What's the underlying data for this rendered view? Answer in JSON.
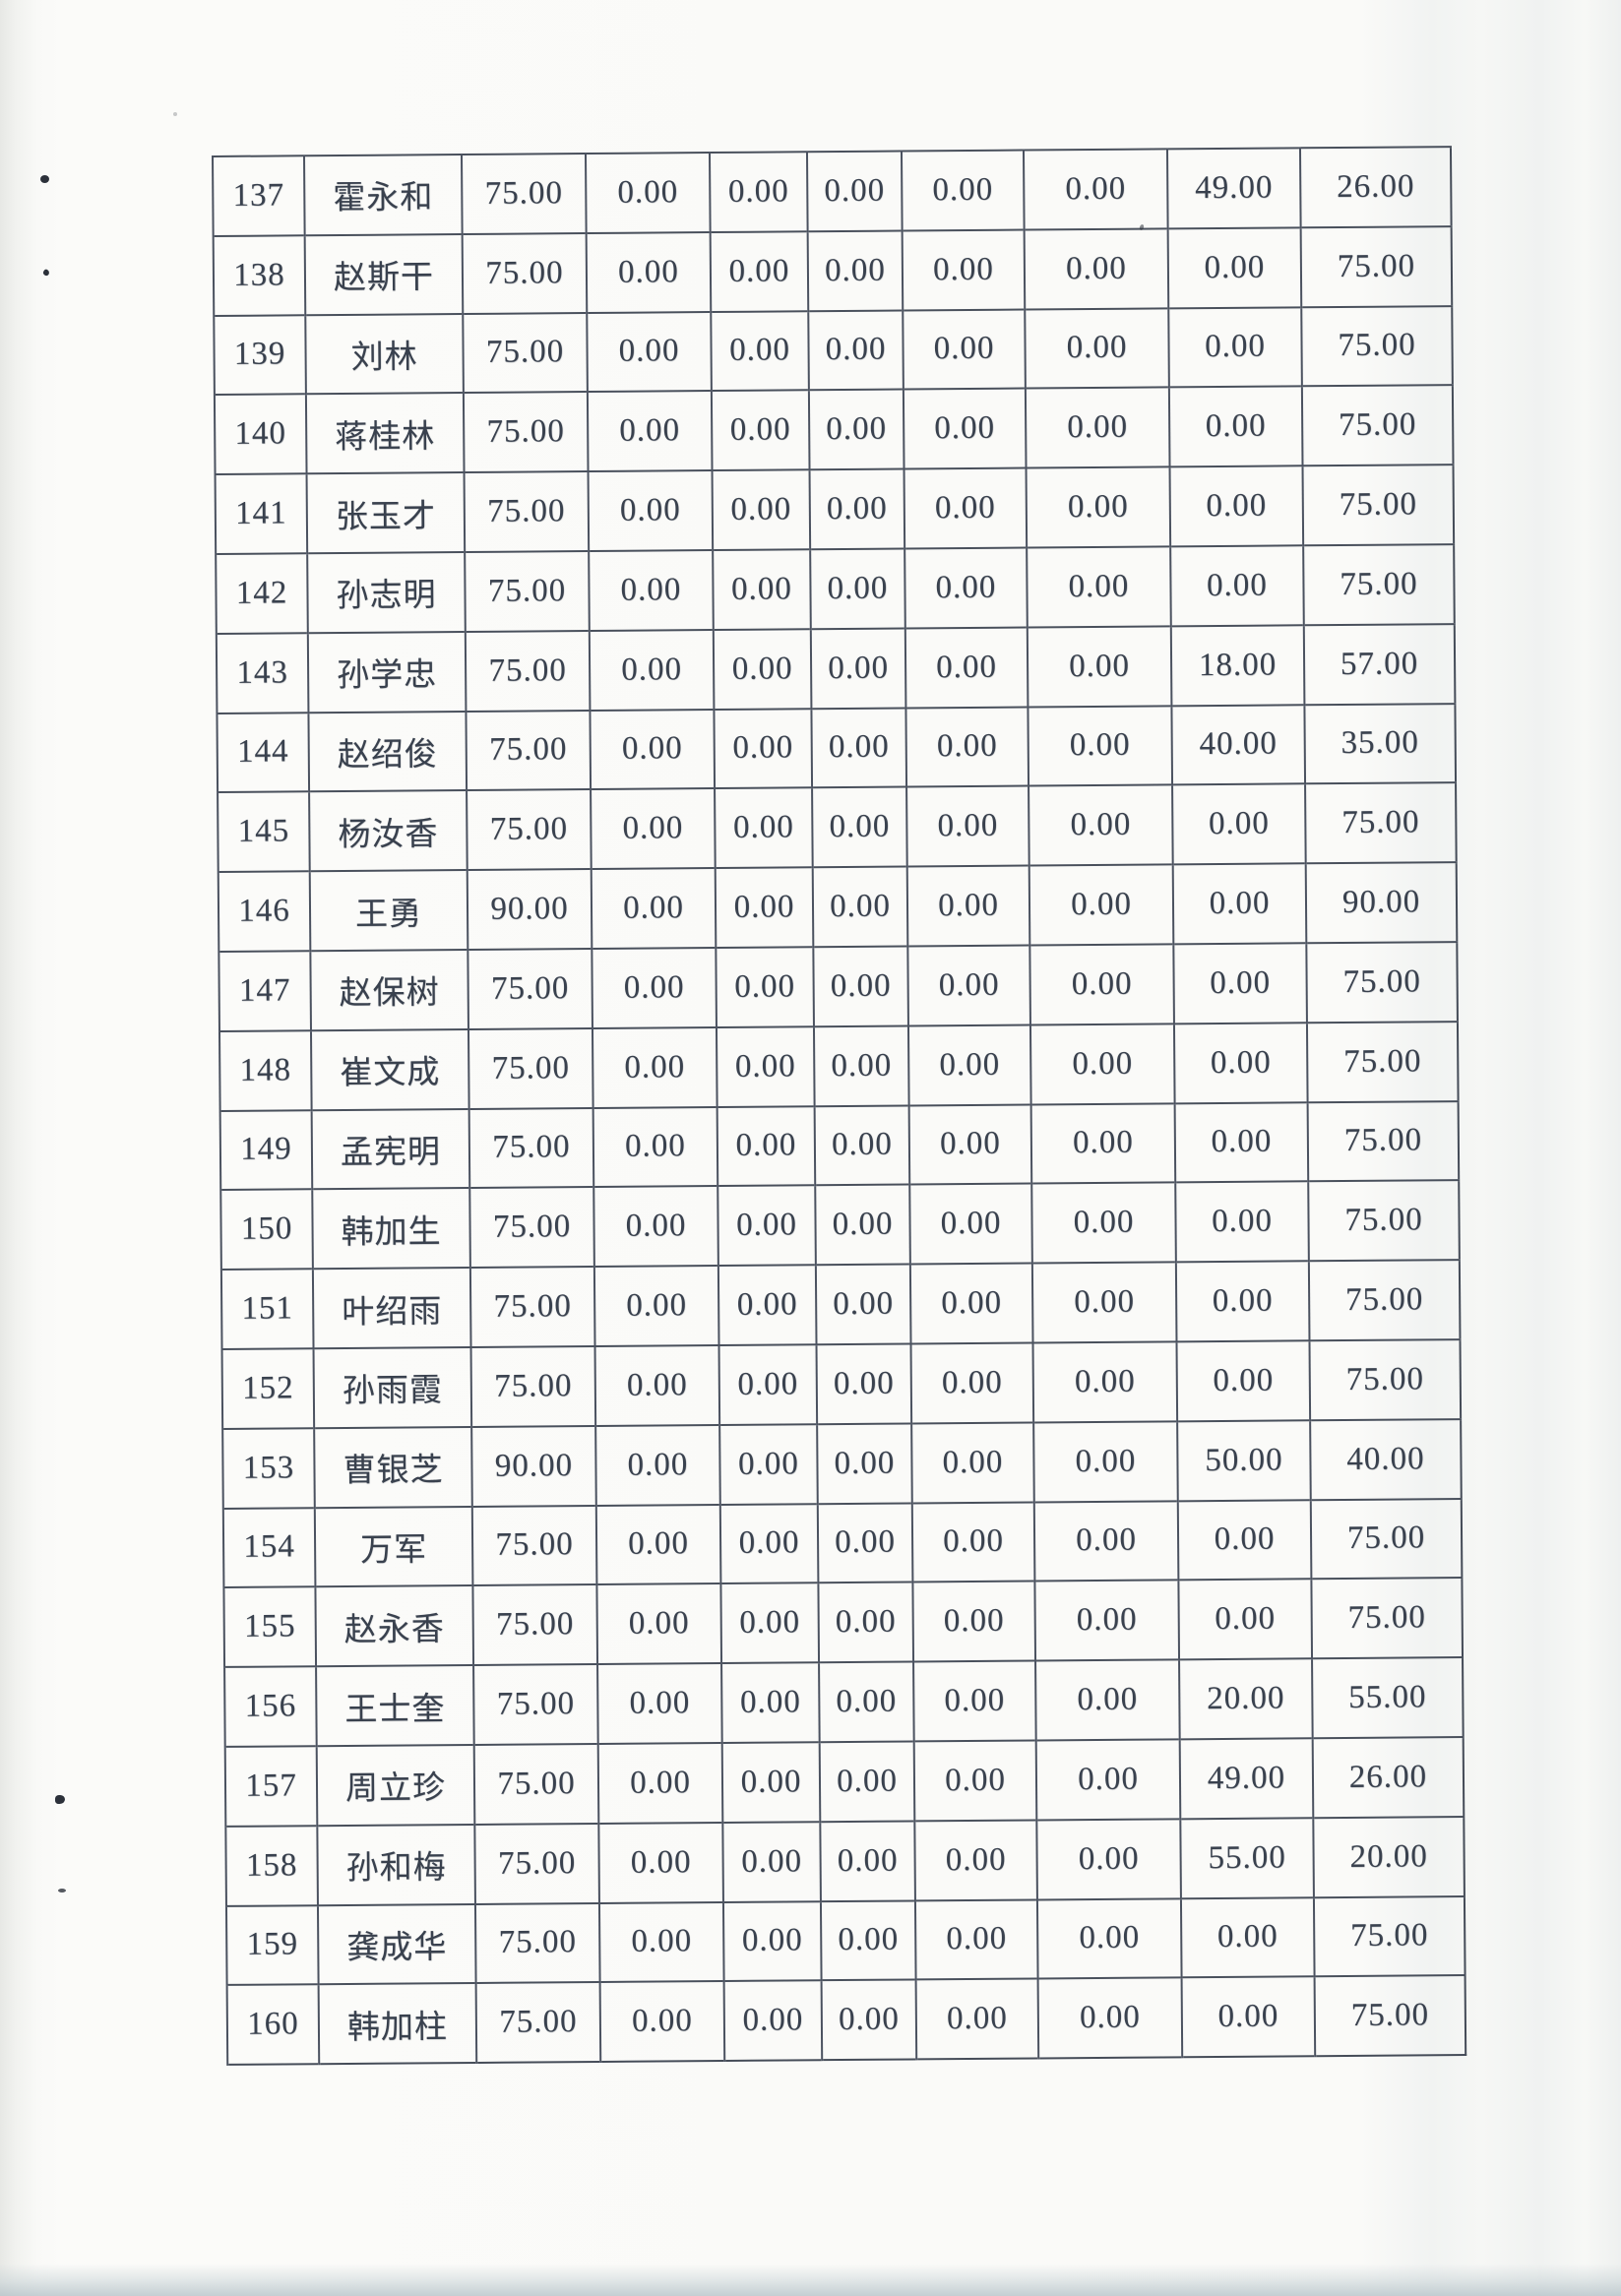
{
  "page": {
    "paper_color": "#fafaf8",
    "ink_color": "#39414e",
    "grid_line_color": "#49505c"
  },
  "table": {
    "rows": [
      {
        "no": "137",
        "name": "霍永和",
        "values": [
          "75.00",
          "0.00",
          "0.00",
          "0.00",
          "0.00",
          "0.00",
          "49.00",
          "26.00"
        ]
      },
      {
        "no": "138",
        "name": "赵斯干",
        "values": [
          "75.00",
          "0.00",
          "0.00",
          "0.00",
          "0.00",
          "0.00",
          "0.00",
          "75.00"
        ]
      },
      {
        "no": "139",
        "name": "刘林",
        "values": [
          "75.00",
          "0.00",
          "0.00",
          "0.00",
          "0.00",
          "0.00",
          "0.00",
          "75.00"
        ]
      },
      {
        "no": "140",
        "name": "蒋桂林",
        "values": [
          "75.00",
          "0.00",
          "0.00",
          "0.00",
          "0.00",
          "0.00",
          "0.00",
          "75.00"
        ]
      },
      {
        "no": "141",
        "name": "张玉才",
        "values": [
          "75.00",
          "0.00",
          "0.00",
          "0.00",
          "0.00",
          "0.00",
          "0.00",
          "75.00"
        ]
      },
      {
        "no": "142",
        "name": "孙志明",
        "values": [
          "75.00",
          "0.00",
          "0.00",
          "0.00",
          "0.00",
          "0.00",
          "0.00",
          "75.00"
        ]
      },
      {
        "no": "143",
        "name": "孙学忠",
        "values": [
          "75.00",
          "0.00",
          "0.00",
          "0.00",
          "0.00",
          "0.00",
          "18.00",
          "57.00"
        ]
      },
      {
        "no": "144",
        "name": "赵绍俊",
        "values": [
          "75.00",
          "0.00",
          "0.00",
          "0.00",
          "0.00",
          "0.00",
          "40.00",
          "35.00"
        ]
      },
      {
        "no": "145",
        "name": "杨汝香",
        "values": [
          "75.00",
          "0.00",
          "0.00",
          "0.00",
          "0.00",
          "0.00",
          "0.00",
          "75.00"
        ]
      },
      {
        "no": "146",
        "name": "王勇",
        "values": [
          "90.00",
          "0.00",
          "0.00",
          "0.00",
          "0.00",
          "0.00",
          "0.00",
          "90.00"
        ]
      },
      {
        "no": "147",
        "name": "赵保树",
        "values": [
          "75.00",
          "0.00",
          "0.00",
          "0.00",
          "0.00",
          "0.00",
          "0.00",
          "75.00"
        ]
      },
      {
        "no": "148",
        "name": "崔文成",
        "values": [
          "75.00",
          "0.00",
          "0.00",
          "0.00",
          "0.00",
          "0.00",
          "0.00",
          "75.00"
        ]
      },
      {
        "no": "149",
        "name": "孟宪明",
        "values": [
          "75.00",
          "0.00",
          "0.00",
          "0.00",
          "0.00",
          "0.00",
          "0.00",
          "75.00"
        ]
      },
      {
        "no": "150",
        "name": "韩加生",
        "values": [
          "75.00",
          "0.00",
          "0.00",
          "0.00",
          "0.00",
          "0.00",
          "0.00",
          "75.00"
        ]
      },
      {
        "no": "151",
        "name": "叶绍雨",
        "values": [
          "75.00",
          "0.00",
          "0.00",
          "0.00",
          "0.00",
          "0.00",
          "0.00",
          "75.00"
        ]
      },
      {
        "no": "152",
        "name": "孙雨霞",
        "values": [
          "75.00",
          "0.00",
          "0.00",
          "0.00",
          "0.00",
          "0.00",
          "0.00",
          "75.00"
        ]
      },
      {
        "no": "153",
        "name": "曹银芝",
        "values": [
          "90.00",
          "0.00",
          "0.00",
          "0.00",
          "0.00",
          "0.00",
          "50.00",
          "40.00"
        ]
      },
      {
        "no": "154",
        "name": "万军",
        "values": [
          "75.00",
          "0.00",
          "0.00",
          "0.00",
          "0.00",
          "0.00",
          "0.00",
          "75.00"
        ]
      },
      {
        "no": "155",
        "name": "赵永香",
        "values": [
          "75.00",
          "0.00",
          "0.00",
          "0.00",
          "0.00",
          "0.00",
          "0.00",
          "75.00"
        ]
      },
      {
        "no": "156",
        "name": "王士奎",
        "values": [
          "75.00",
          "0.00",
          "0.00",
          "0.00",
          "0.00",
          "0.00",
          "20.00",
          "55.00"
        ]
      },
      {
        "no": "157",
        "name": "周立珍",
        "values": [
          "75.00",
          "0.00",
          "0.00",
          "0.00",
          "0.00",
          "0.00",
          "49.00",
          "26.00"
        ]
      },
      {
        "no": "158",
        "name": "孙和梅",
        "values": [
          "75.00",
          "0.00",
          "0.00",
          "0.00",
          "0.00",
          "0.00",
          "55.00",
          "20.00"
        ]
      },
      {
        "no": "159",
        "name": "龚成华",
        "values": [
          "75.00",
          "0.00",
          "0.00",
          "0.00",
          "0.00",
          "0.00",
          "0.00",
          "75.00"
        ]
      },
      {
        "no": "160",
        "name": "韩加柱",
        "values": [
          "75.00",
          "0.00",
          "0.00",
          "0.00",
          "0.00",
          "0.00",
          "0.00",
          "75.00"
        ]
      }
    ]
  }
}
